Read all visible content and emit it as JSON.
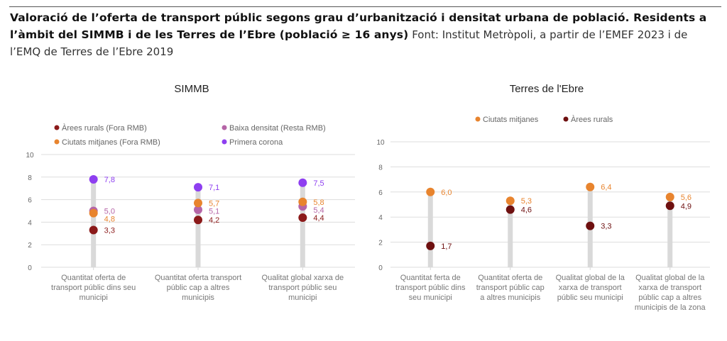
{
  "header": {
    "title_bold": "Valoració de l’oferta de transport públic segons grau d’urbanització i densitat urbana de població. Residents a l’àmbit del SIMMB i de les Terres de l’Ebre (població ≥ 16 anys)",
    "source": "Font: Institut Metròpoli, a partir de l’EMEF 2023 i de l’EMQ de Terres de l’Ebre 2019"
  },
  "chart_data": [
    {
      "type": "scatter",
      "subtype": "dot-plot",
      "title": "SIMMB",
      "xlabel": "",
      "ylabel": "",
      "ylim": [
        0,
        10
      ],
      "yticks": [
        0,
        2,
        4,
        6,
        8,
        10
      ],
      "ytick_labels": [
        "0",
        "2",
        "4",
        "6",
        "8",
        "10"
      ],
      "grid": true,
      "legend_position": "top",
      "categories": [
        "Quantitat oferta de transport públic dins seu municipi",
        "Quantitat oferta  transport públic cap a altres municipis",
        "Qualitat global xarxa de transport públic seu municipi"
      ],
      "series": [
        {
          "name": "Àrees rurals (Fora RMB)",
          "color": "#8b1a1a",
          "values": [
            3.3,
            4.2,
            4.4
          ],
          "labels": [
            "3,3",
            "4,2",
            "4,4"
          ]
        },
        {
          "name": "Baixa densitat (Resta RMB)",
          "color": "#b565a7",
          "values": [
            5.0,
            5.1,
            5.4
          ],
          "labels": [
            "5,0",
            "5,1",
            "5,4"
          ]
        },
        {
          "name": "Ciutats mitjanes (Fora RMB)",
          "color": "#e8842e",
          "values": [
            4.8,
            5.7,
            5.8
          ],
          "labels": [
            "4,8",
            "5,7",
            "5,8"
          ]
        },
        {
          "name": "Primera corona",
          "color": "#8e3ff0",
          "values": [
            7.8,
            7.1,
            7.5
          ],
          "labels": [
            "7,8",
            "7,1",
            "7,5"
          ]
        }
      ]
    },
    {
      "type": "scatter",
      "subtype": "dot-plot",
      "title": "Terres de l'Ebre",
      "xlabel": "",
      "ylabel": "",
      "ylim": [
        0,
        10
      ],
      "yticks": [
        0,
        2,
        4,
        6,
        8,
        10
      ],
      "ytick_labels": [
        "0",
        "2",
        "4",
        "6",
        "8",
        "10"
      ],
      "grid": true,
      "legend_position": "top",
      "categories": [
        "Quantitat ferta de transport públic dins seu municipi",
        "Quantitat oferta de transport públic cap a altres municipis",
        "Qualitat global de la xarxa de transport públic seu municipi",
        "Qualitat global de la xarxa de transport públic cap a altres municipis de la zona"
      ],
      "series": [
        {
          "name": "Ciutats mitjanes",
          "color": "#e8842e",
          "values": [
            6.0,
            5.3,
            6.4,
            5.6
          ],
          "labels": [
            "6,0",
            "5,3",
            "6,4",
            "5,6"
          ]
        },
        {
          "name": "Àrees rurals",
          "color": "#6e1010",
          "values": [
            1.7,
            4.6,
            3.3,
            4.9
          ],
          "labels": [
            "1,7",
            "4,6",
            "3,3",
            "4,9"
          ]
        }
      ]
    }
  ]
}
